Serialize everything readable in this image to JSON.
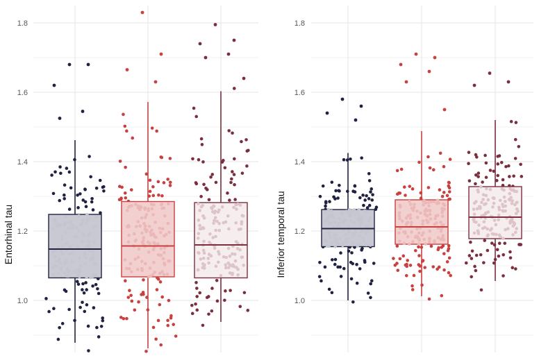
{
  "chart_data": [
    {
      "type": "box",
      "ylabel": "Entorhinal tau",
      "ylim": [
        0.85,
        1.85
      ],
      "yticks": [
        1.0,
        1.2,
        1.4,
        1.6,
        1.8
      ],
      "ytick_labels": [
        "1.0",
        "1.2",
        "1.4",
        "1.6",
        "1.8"
      ],
      "grid": true,
      "groups": [
        {
          "color": "#1f2240",
          "box_fill": "#c8c9d3",
          "point_fill": "#c4c5cf",
          "q1": 1.065,
          "median": 1.148,
          "q3": 1.248,
          "whisker_low": 0.878,
          "whisker_high": 1.462
        },
        {
          "color": "#c8403f",
          "box_fill": "#f1d0cf",
          "point_fill": "#eab8b6",
          "q1": 1.068,
          "median": 1.157,
          "q3": 1.285,
          "whisker_low": 0.862,
          "whisker_high": 1.572
        },
        {
          "color": "#7a2f3e",
          "box_fill": "#f6edef",
          "point_fill": "#dcc4c9",
          "q1": 1.065,
          "median": 1.16,
          "q3": 1.282,
          "whisker_low": 0.938,
          "whisker_high": 1.603
        }
      ],
      "outliers": [
        [
          [
            1.68,
            1.68,
            1.62,
            1.545,
            1.525
          ]
        ],
        [
          [
            1.83,
            1.71,
            1.665,
            1.63
          ]
        ],
        [
          [
            1.795,
            1.75,
            1.74,
            1.71,
            1.7,
            1.64
          ]
        ]
      ]
    },
    {
      "type": "box",
      "ylabel": "Inferior temporal tau",
      "ylim": [
        0.85,
        1.85
      ],
      "yticks": [
        1.0,
        1.2,
        1.4,
        1.6,
        1.8
      ],
      "ytick_labels": [
        "1.0",
        "1.2",
        "1.4",
        "1.6",
        "1.8"
      ],
      "grid": true,
      "groups": [
        {
          "color": "#1f2240",
          "box_fill": "#c8c9d3",
          "point_fill": "#c4c5cf",
          "q1": 1.155,
          "median": 1.207,
          "q3": 1.262,
          "whisker_low": 1.0,
          "whisker_high": 1.425
        },
        {
          "color": "#c8403f",
          "box_fill": "#f1d0cf",
          "point_fill": "#eab8b6",
          "q1": 1.162,
          "median": 1.212,
          "q3": 1.29,
          "whisker_low": 1.012,
          "whisker_high": 1.488
        },
        {
          "color": "#7a2f3e",
          "box_fill": "#f6edef",
          "point_fill": "#dcc4c9",
          "q1": 1.178,
          "median": 1.24,
          "q3": 1.328,
          "whisker_low": 1.056,
          "whisker_high": 1.52
        }
      ],
      "outliers": [
        [
          [
            1.58,
            1.56,
            1.54,
            1.52
          ]
        ],
        [
          [
            1.71,
            1.7,
            1.68,
            1.66,
            1.63,
            1.55
          ]
        ],
        [
          [
            1.655,
            1.63,
            1.62
          ]
        ]
      ]
    }
  ]
}
